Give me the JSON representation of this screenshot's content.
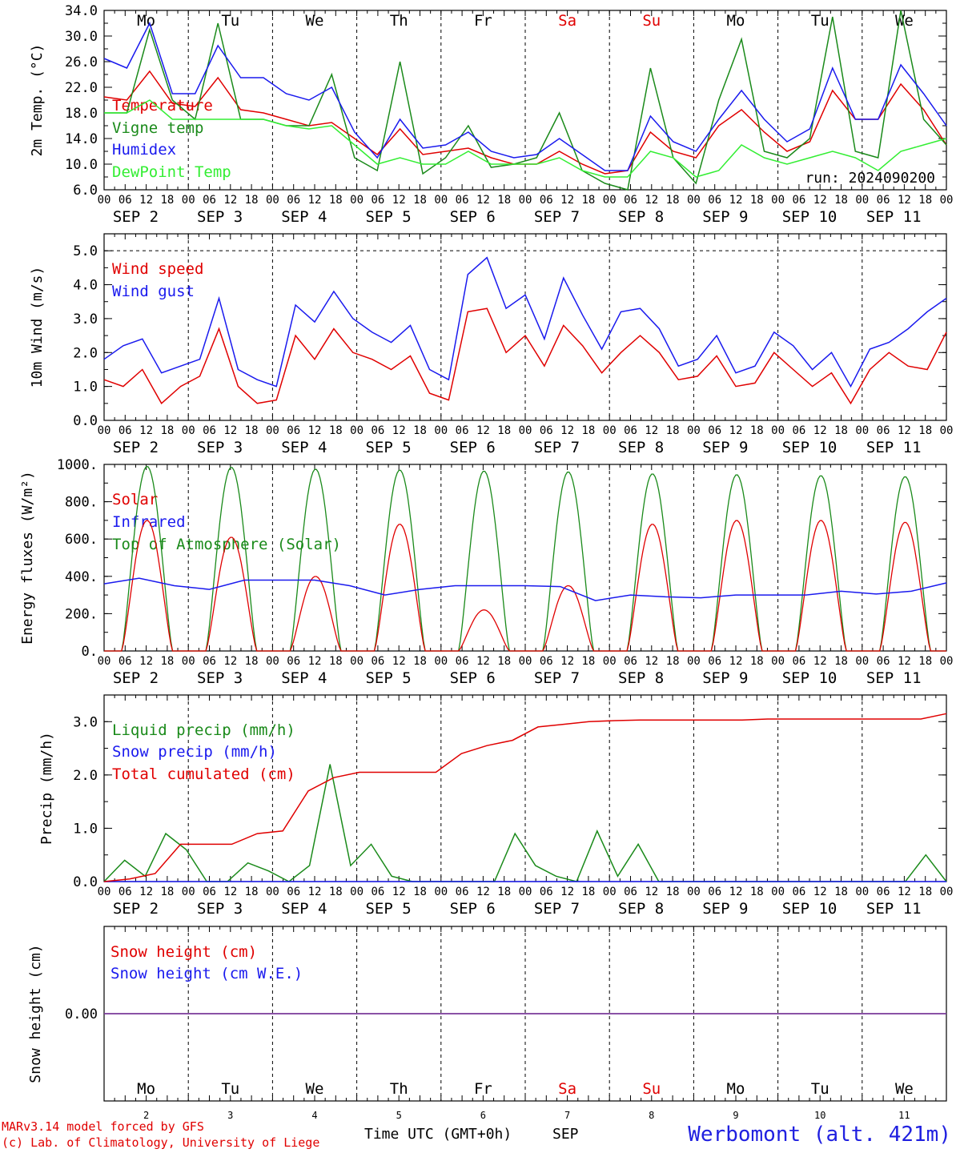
{
  "footer": {
    "model": "MARv3.14 model forced by GFS",
    "credit": "(c) Lab. of Climatology, University of Liege",
    "time_label": "Time UTC (GMT+0h)",
    "month": "SEP",
    "station": "Werbomont (alt. 421m)"
  },
  "colors": {
    "red": "#e00000",
    "green": "#1a8a1a",
    "blue": "#1a1aee",
    "lightgreen": "#33ee33",
    "purple": "#7a3a9a"
  },
  "days": {
    "weekdays": [
      "Mo",
      "Tu",
      "We",
      "Th",
      "Fr",
      "Sa",
      "Su",
      "Mo",
      "Tu",
      "We"
    ],
    "weekend_color": [
      "black",
      "black",
      "black",
      "black",
      "black",
      "red",
      "red",
      "black",
      "black",
      "black"
    ],
    "numbers": [
      "2",
      "3",
      "4",
      "5",
      "6",
      "7",
      "8",
      "9",
      "10",
      "11"
    ],
    "hour_labels": [
      "00",
      "06",
      "12",
      "18"
    ],
    "end_hour": "00",
    "date_labels": [
      "SEP  2",
      "SEP  3",
      "SEP  4",
      "SEP  5",
      "SEP  6",
      "SEP  7",
      "SEP  8",
      "SEP  9",
      "SEP 10",
      "SEP 11"
    ]
  },
  "chart_data": [
    {
      "type": "line",
      "ylabel": "2m Temp. (°C)",
      "ylim": [
        6,
        34
      ],
      "yticks": [
        "6.0",
        "10.0",
        "14.0",
        "18.0",
        "22.0",
        "26.0",
        "30.0",
        "34.0"
      ],
      "run_label": "run: 2024090200",
      "x_hours": [
        0,
        6,
        12,
        18,
        24,
        30,
        36,
        42,
        48,
        54,
        60,
        66,
        72,
        78,
        84,
        90,
        96,
        102,
        108,
        114,
        120,
        126,
        132,
        138,
        144,
        150,
        156,
        162,
        168,
        174,
        180,
        186,
        192,
        198,
        204,
        210,
        216,
        222,
        228,
        234,
        240
      ],
      "series": [
        {
          "name": "Temperature",
          "color": "red",
          "values": [
            20.5,
            20,
            24.5,
            19.5,
            19,
            23.5,
            18.5,
            18,
            17,
            16,
            16.5,
            14,
            11.5,
            15.5,
            11.5,
            12,
            12.5,
            11,
            10,
            10,
            12,
            10,
            8.5,
            9,
            15,
            12,
            11,
            16,
            18.5,
            15,
            12,
            13.5,
            21.5,
            17,
            17,
            22.5,
            18.5,
            13
          ]
        },
        {
          "name": "Vigne temp",
          "color": "green",
          "values": [
            18,
            18,
            31,
            20,
            17,
            32,
            17,
            17,
            16,
            16,
            24,
            11,
            9,
            26,
            8.5,
            11,
            16,
            9.5,
            10,
            11,
            18,
            9,
            7,
            6,
            25,
            11,
            7,
            20,
            29.5,
            12,
            11,
            14,
            33,
            12,
            11,
            34,
            17,
            13
          ]
        },
        {
          "name": "Humidex",
          "color": "blue",
          "values": [
            26.5,
            25,
            32,
            21,
            21,
            28.5,
            23.5,
            23.5,
            21,
            20,
            22,
            15,
            11,
            17,
            12.5,
            13,
            15,
            12,
            11,
            11.5,
            14,
            11.5,
            9,
            9,
            17.5,
            13.5,
            12,
            17,
            21.5,
            17,
            13.5,
            15.5,
            25,
            17,
            17,
            25.5,
            21,
            16
          ]
        },
        {
          "name": "DewPoint Temp",
          "color": "lightgreen",
          "values": [
            18,
            18,
            20,
            17,
            17,
            17,
            17,
            17,
            16,
            15.5,
            16,
            13,
            10,
            11,
            10,
            10,
            12,
            10,
            10,
            10,
            11,
            9,
            8,
            8,
            12,
            11,
            8,
            9,
            13,
            11,
            10,
            11,
            12,
            11,
            9,
            12,
            13,
            14
          ]
        }
      ]
    },
    {
      "type": "line",
      "ylabel": "10m Wind (m/s)",
      "ylim": [
        0,
        5.5
      ],
      "yticks": [
        "0.0",
        "1.0",
        "2.0",
        "3.0",
        "4.0",
        "5.0"
      ],
      "dashed_level": 5.0,
      "series": [
        {
          "name": "Wind speed",
          "color": "red",
          "values": [
            1.2,
            1.0,
            1.5,
            0.5,
            1.0,
            1.3,
            2.7,
            1.0,
            0.5,
            0.6,
            2.5,
            1.8,
            2.7,
            2.0,
            1.8,
            1.5,
            1.9,
            0.8,
            0.6,
            3.2,
            3.3,
            2.0,
            2.5,
            1.6,
            2.8,
            2.2,
            1.4,
            2.0,
            2.5,
            2.0,
            1.2,
            1.3,
            1.9,
            1.0,
            1.1,
            2.0,
            1.5,
            1.0,
            1.4,
            0.5,
            1.5,
            2.0,
            1.6,
            1.5,
            2.6
          ]
        },
        {
          "name": "Wind gust",
          "color": "blue",
          "values": [
            1.8,
            2.2,
            2.4,
            1.4,
            1.6,
            1.8,
            3.6,
            1.5,
            1.2,
            1.0,
            3.4,
            2.9,
            3.8,
            3.0,
            2.6,
            2.3,
            2.8,
            1.5,
            1.2,
            4.3,
            4.8,
            3.3,
            3.7,
            2.4,
            4.2,
            3.1,
            2.1,
            3.2,
            3.3,
            2.7,
            1.6,
            1.8,
            2.5,
            1.4,
            1.6,
            2.6,
            2.2,
            1.5,
            2.0,
            1.0,
            2.1,
            2.3,
            2.7,
            3.2,
            3.6
          ]
        }
      ]
    },
    {
      "type": "line",
      "ylabel": "Energy fluxes (W/m²)",
      "ylim": [
        0,
        1000
      ],
      "yticks": [
        "0.",
        "200.",
        "400.",
        "600.",
        "800.",
        "1000."
      ],
      "series": [
        {
          "name": "Solar",
          "color": "red",
          "peaks": [
            700,
            610,
            400,
            680,
            220,
            350,
            680,
            700,
            700,
            690
          ]
        },
        {
          "name": "Infrared",
          "color": "blue",
          "values": [
            360,
            390,
            350,
            330,
            380,
            380,
            380,
            350,
            300,
            330,
            350,
            350,
            350,
            345,
            270,
            300,
            290,
            285,
            300,
            300,
            300,
            320,
            305,
            320,
            365
          ]
        },
        {
          "name": "Top of Atmosphere (Solar)",
          "color": "green",
          "peaks": [
            990,
            985,
            975,
            970,
            965,
            960,
            950,
            945,
            940,
            935
          ]
        }
      ]
    },
    {
      "type": "line",
      "ylabel": "Precip (mm/h)",
      "ylim": [
        0,
        3.5
      ],
      "yticks": [
        "0.0",
        "1.0",
        "2.0",
        "3.0"
      ],
      "series": [
        {
          "name": "Liquid precip (mm/h)",
          "color": "green",
          "values": [
            0,
            0.4,
            0.1,
            0.9,
            0.6,
            0,
            0,
            0.35,
            0.2,
            0,
            0.3,
            2.2,
            0.3,
            0.7,
            0.1,
            0,
            0,
            0,
            0,
            0,
            0.9,
            0.3,
            0.1,
            0,
            0.95,
            0.1,
            0.7,
            0,
            0,
            0,
            0,
            0,
            0,
            0,
            0,
            0,
            0,
            0,
            0,
            0,
            0.5,
            0
          ]
        },
        {
          "name": "Snow precip (mm/h)",
          "color": "blue",
          "values": [
            0,
            0
          ]
        },
        {
          "name": "Total cumulated (cm)",
          "color": "red",
          "values": [
            0,
            0.05,
            0.15,
            0.7,
            0.7,
            0.7,
            0.9,
            0.95,
            1.7,
            1.95,
            2.05,
            2.05,
            2.05,
            2.05,
            2.4,
            2.55,
            2.65,
            2.9,
            2.95,
            3.0,
            3.02,
            3.03,
            3.03,
            3.03,
            3.03,
            3.03,
            3.05,
            3.05,
            3.05,
            3.05,
            3.05,
            3.05,
            3.05,
            3.15
          ]
        }
      ]
    },
    {
      "type": "line",
      "ylabel": "Snow height (cm)",
      "ylim": [
        -1,
        1
      ],
      "yticks": [
        "0.00"
      ],
      "series": [
        {
          "name": "Snow height (cm)",
          "color": "red",
          "values": [
            0,
            0
          ]
        },
        {
          "name": "Snow height (cm W.E.)",
          "color": "blue",
          "values": [
            0,
            0
          ]
        }
      ]
    }
  ]
}
